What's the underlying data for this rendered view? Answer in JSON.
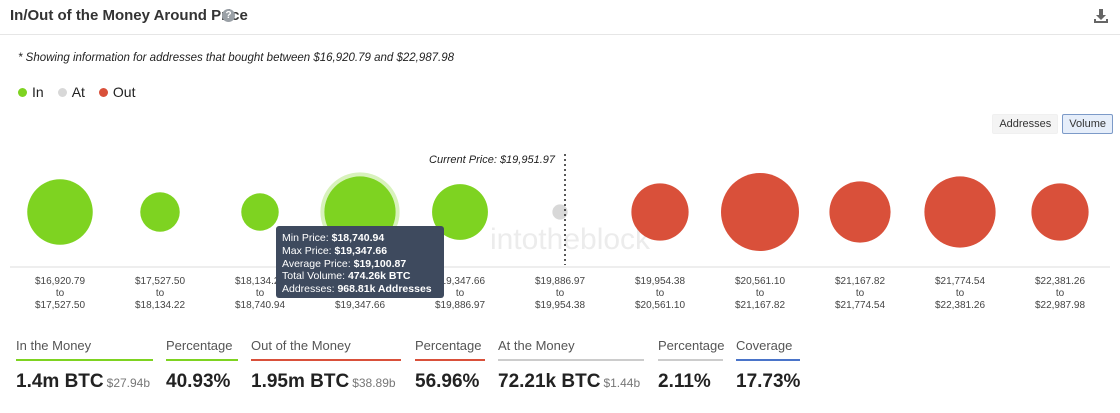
{
  "header": {
    "title": "In/Out of the Money Around Price",
    "help_glyph": "?"
  },
  "note": "* Showing information for addresses that bought between $16,920.79 and $22,987.98",
  "legend": [
    {
      "label": "In",
      "color": "#7ed321"
    },
    {
      "label": "At",
      "color": "#d8d8d8"
    },
    {
      "label": "Out",
      "color": "#d9503a"
    }
  ],
  "toggle": {
    "addresses_label": "Addresses",
    "volume_label": "Volume"
  },
  "watermark": "intotheblock",
  "chart_data": {
    "type": "bubble",
    "current_price_label": "Current Price: $19,951.97",
    "current_price_index": 5,
    "size_metric": "Volume",
    "colors": {
      "in": "#7ed321",
      "at": "#d8d8d8",
      "out": "#d9503a"
    },
    "bins": [
      {
        "min": "$16,920.79",
        "max": "$17,527.50",
        "status": "in",
        "volume": 0.55
      },
      {
        "min": "$17,527.50",
        "max": "$18,134.22",
        "status": "in",
        "volume": 0.2
      },
      {
        "min": "$18,134.22",
        "max": "$18,740.94",
        "status": "in",
        "volume": 0.18
      },
      {
        "min": "$18,740.94",
        "max": "$19,347.66",
        "status": "in",
        "volume": 0.65,
        "highlight": true
      },
      {
        "min": "$19,347.66",
        "max": "$19,886.97",
        "status": "in",
        "volume": 0.4
      },
      {
        "min": "$19,886.97",
        "max": "$19,954.38",
        "status": "at",
        "volume": 0.03
      },
      {
        "min": "$19,954.38",
        "max": "$20,561.10",
        "status": "out",
        "volume": 0.42
      },
      {
        "min": "$20,561.10",
        "max": "$21,167.82",
        "status": "out",
        "volume": 0.78
      },
      {
        "min": "$21,167.82",
        "max": "$21,774.54",
        "status": "out",
        "volume": 0.48
      },
      {
        "min": "$21,774.54",
        "max": "$22,381.26",
        "status": "out",
        "volume": 0.65
      },
      {
        "min": "$22,381.26",
        "max": "$22,987.98",
        "status": "out",
        "volume": 0.42
      }
    ],
    "tick_to": "to"
  },
  "tooltip": {
    "min_label": "Min Price:",
    "min_value": "$18,740.94",
    "max_label": "Max Price:",
    "max_value": "$19,347.66",
    "avg_label": "Average Price:",
    "avg_value": "$19,100.87",
    "vol_label": "Total Volume:",
    "vol_value": "474.26k BTC",
    "addr_label": "Addresses:",
    "addr_value": "968.81k Addresses"
  },
  "stats": [
    {
      "label": "In the Money",
      "value": "1.4m BTC",
      "sub": "$27.94b",
      "color": "#7ed321"
    },
    {
      "label": "Percentage",
      "value": "40.93%",
      "sub": "",
      "color": "#7ed321"
    },
    {
      "label": "Out of the Money",
      "value": "1.95m BTC",
      "sub": "$38.89b",
      "color": "#d9503a"
    },
    {
      "label": "Percentage",
      "value": "56.96%",
      "sub": "",
      "color": "#d9503a"
    },
    {
      "label": "At the Money",
      "value": "72.21k BTC",
      "sub": "$1.44b",
      "color": "#cccccc"
    },
    {
      "label": "Percentage",
      "value": "2.11%",
      "sub": "",
      "color": "#cccccc"
    },
    {
      "label": "Coverage",
      "value": "17.73%",
      "sub": "",
      "color": "#4a74c9"
    }
  ]
}
